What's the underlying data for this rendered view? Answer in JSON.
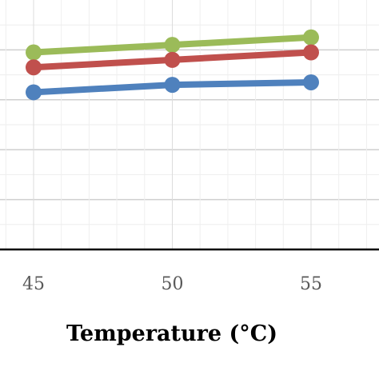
{
  "chart_data": {
    "type": "line",
    "title": "",
    "xlabel": "Temperature (°C)",
    "ylabel": "",
    "x": [
      45,
      50,
      55
    ],
    "x_ticks": [
      "45",
      "50",
      "55"
    ],
    "series": [
      {
        "color": "#9bbb59",
        "values": [
          7.9,
          8.2,
          8.5
        ]
      },
      {
        "color": "#c0504d",
        "values": [
          7.3,
          7.6,
          7.9
        ]
      },
      {
        "color": "#4f81bd",
        "values": [
          6.3,
          6.6,
          6.7
        ]
      }
    ],
    "ylim": [
      0,
      10
    ],
    "grid": true,
    "legend": "none"
  }
}
